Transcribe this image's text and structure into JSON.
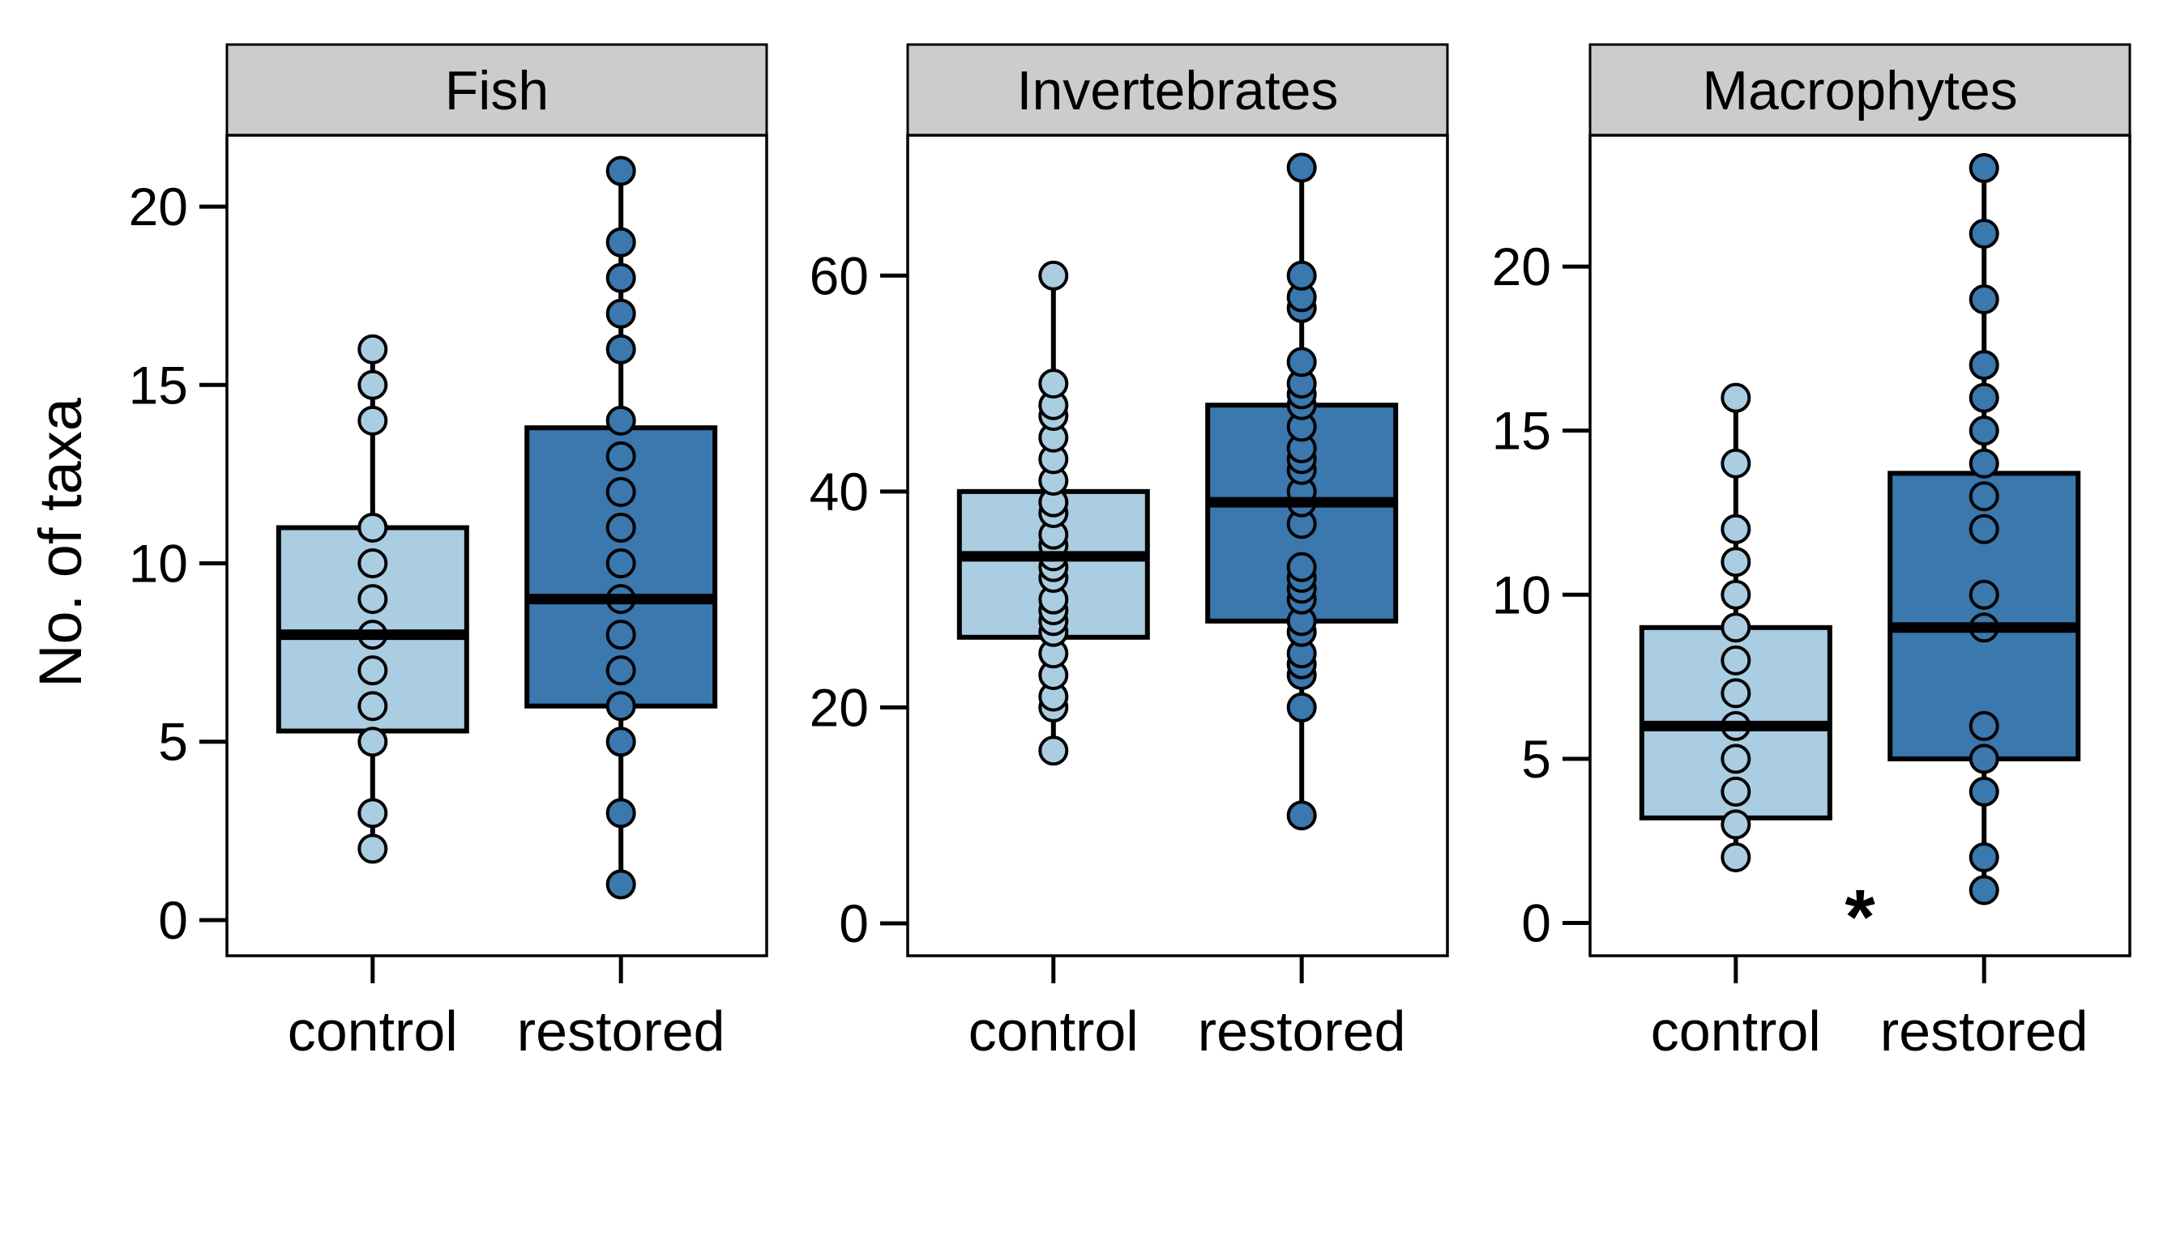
{
  "colors": {
    "control": "#abcde1",
    "restored": "#3a78ae",
    "strip": "#cccccc"
  },
  "chart_data": {
    "type": "box",
    "ylabel": "No. of taxa",
    "categories": [
      "control",
      "restored"
    ],
    "panels": [
      {
        "title": "Fish",
        "ylim": [
          -1,
          22
        ],
        "yticks": [
          0,
          5,
          10,
          15,
          20
        ],
        "groups": [
          {
            "category": "control",
            "min": 2,
            "q1": 5.3,
            "median": 8,
            "q3": 11,
            "max": 16,
            "points": [
              2,
              3,
              5,
              6,
              7,
              8,
              9,
              10,
              11,
              14,
              15,
              16
            ]
          },
          {
            "category": "restored",
            "min": 1,
            "q1": 6,
            "median": 9,
            "q3": 13.8,
            "max": 21,
            "points": [
              1,
              3,
              5,
              6,
              7,
              8,
              9,
              10,
              11,
              12,
              13,
              14,
              16,
              17,
              18,
              19,
              21
            ]
          }
        ],
        "annotation": ""
      },
      {
        "title": "Invertebrates",
        "ylim": [
          -3,
          73
        ],
        "yticks": [
          0,
          20,
          40,
          60
        ],
        "groups": [
          {
            "category": "control",
            "min": 16,
            "q1": 26.5,
            "median": 34,
            "q3": 40,
            "max": 60,
            "points": [
              16,
              20,
              21,
              23,
              25,
              27,
              28,
              29,
              30,
              32,
              33,
              34,
              35,
              36,
              38,
              39,
              41,
              43,
              45,
              47,
              48,
              50,
              60
            ]
          },
          {
            "category": "restored",
            "min": 10,
            "q1": 28,
            "median": 39,
            "q3": 48,
            "max": 70,
            "points": [
              10,
              20,
              23,
              24,
              25,
              27,
              28,
              30,
              31,
              32,
              33,
              37,
              39,
              40,
              42,
              43,
              44,
              46,
              48,
              49,
              50,
              52,
              57,
              58,
              60,
              70
            ]
          }
        ],
        "annotation": ""
      },
      {
        "title": "Macrophytes",
        "ylim": [
          -1,
          24
        ],
        "yticks": [
          0,
          5,
          10,
          15,
          20
        ],
        "groups": [
          {
            "category": "control",
            "min": 2,
            "q1": 3.2,
            "median": 6,
            "q3": 9,
            "max": 16,
            "points": [
              2,
              3,
              4,
              5,
              6,
              7,
              8,
              9,
              10,
              11,
              12,
              14,
              16
            ]
          },
          {
            "category": "restored",
            "min": 1,
            "q1": 5,
            "median": 9,
            "q3": 13.7,
            "max": 23,
            "points": [
              1,
              2,
              4,
              5,
              6,
              9,
              10,
              12,
              13,
              14,
              15,
              16,
              17,
              19,
              21,
              23
            ]
          }
        ],
        "annotation": "*"
      }
    ]
  }
}
